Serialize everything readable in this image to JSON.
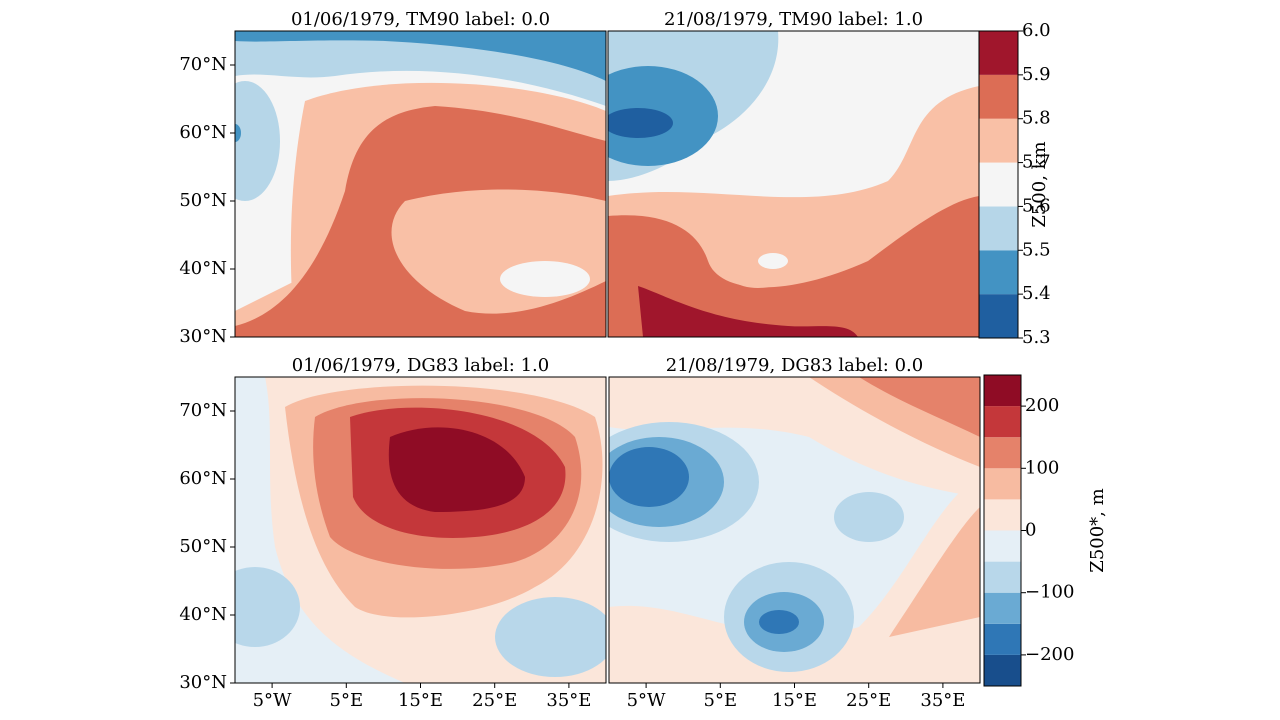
{
  "chart_data": [
    {
      "type": "contour",
      "title": "01/06/1979, TM90 label: 0.0",
      "colorbar": 0,
      "xlim": [
        -10,
        40
      ],
      "ylim": [
        30,
        75
      ],
      "yticks": [
        {
          "value": 30,
          "label": "30°N"
        },
        {
          "value": 40,
          "label": "40°N"
        },
        {
          "value": 50,
          "label": "50°N"
        },
        {
          "value": 60,
          "label": "60°N"
        },
        {
          "value": 70,
          "label": "70°N"
        }
      ]
    },
    {
      "type": "contour",
      "title": "21/08/1979, TM90 label: 1.0",
      "colorbar": 0,
      "xlim": [
        -10,
        40
      ],
      "ylim": [
        30,
        75
      ]
    },
    {
      "type": "contour",
      "title": "01/06/1979, DG83 label: 1.0",
      "colorbar": 1,
      "xlim": [
        -10,
        40
      ],
      "ylim": [
        30,
        75
      ],
      "yticks": [
        {
          "value": 30,
          "label": "30°N"
        },
        {
          "value": 40,
          "label": "40°N"
        },
        {
          "value": 50,
          "label": "50°N"
        },
        {
          "value": 60,
          "label": "60°N"
        },
        {
          "value": 70,
          "label": "70°N"
        }
      ],
      "xticks": [
        {
          "value": -5,
          "label": "5°W"
        },
        {
          "value": 5,
          "label": "5°E"
        },
        {
          "value": 15,
          "label": "15°E"
        },
        {
          "value": 25,
          "label": "25°E"
        },
        {
          "value": 35,
          "label": "35°E"
        }
      ]
    },
    {
      "type": "contour",
      "title": "21/08/1979, DG83 label: 0.0",
      "colorbar": 1,
      "xlim": [
        -10,
        40
      ],
      "ylim": [
        30,
        75
      ],
      "xticks": [
        {
          "value": -5,
          "label": "5°W"
        },
        {
          "value": 5,
          "label": "5°E"
        },
        {
          "value": 15,
          "label": "15°E"
        },
        {
          "value": 25,
          "label": "25°E"
        },
        {
          "value": 35,
          "label": "35°E"
        }
      ]
    }
  ],
  "colorbars": [
    {
      "label": "Z500, km",
      "lim": [
        5.3,
        6.0
      ],
      "levels": [
        5.3,
        5.4,
        5.5,
        5.6,
        5.7,
        5.8,
        5.9,
        6.0
      ],
      "colors": [
        "#1f5fa0",
        "#4393c3",
        "#b6d6e8",
        "#f5f5f5",
        "#f9c0a6",
        "#dc6d55",
        "#a0162c"
      ],
      "ticks": [
        5.3,
        5.4,
        5.5,
        5.6,
        5.7,
        5.8,
        5.9,
        {
          "value": 6,
          "label": "6.0"
        }
      ]
    },
    {
      "label": "Z500*, m",
      "lim": [
        -250,
        250
      ],
      "levels": [
        -250,
        -200,
        -150,
        -100,
        -50,
        0,
        50,
        100,
        150,
        200,
        250
      ],
      "colors": [
        "#184e8c",
        "#2f77b6",
        "#6aaad3",
        "#b8d7ea",
        "#e5eff6",
        "#fbe6da",
        "#f7bba1",
        "#e5826a",
        "#c4373a",
        "#8f0c25"
      ],
      "ticks": [
        {
          "value": -200,
          "label": "−200"
        },
        {
          "value": -100,
          "label": "−100"
        },
        0,
        100,
        200
      ]
    }
  ]
}
